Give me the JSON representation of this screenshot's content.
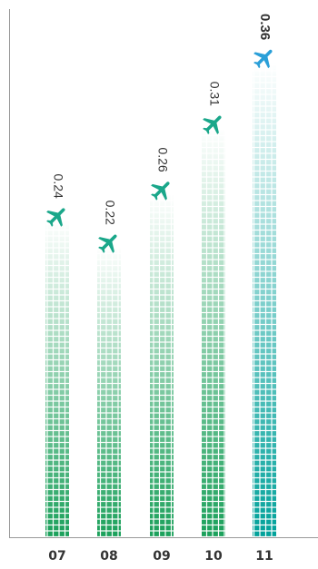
{
  "chart_data": {
    "type": "bar",
    "title": "",
    "xlabel": "",
    "ylabel": "",
    "categories": [
      "07",
      "08",
      "09",
      "10",
      "11"
    ],
    "values": [
      0.24,
      0.22,
      0.26,
      0.31,
      0.36
    ],
    "data_labels": [
      "0.24",
      "0.22",
      "0.26",
      "0.31",
      "0.36"
    ],
    "highlight_index": 4,
    "ylim": [
      0,
      0.4
    ],
    "grid": false,
    "legend": "none",
    "marker_icon": "airplane-icon",
    "colors": {
      "bar_base": "#1aa05a",
      "bar_highlight": "#00a19a",
      "icon": "#1aa78a",
      "icon_highlight": "#2a9fd8",
      "axis": "#9a9a9a",
      "text": "#333333"
    }
  }
}
